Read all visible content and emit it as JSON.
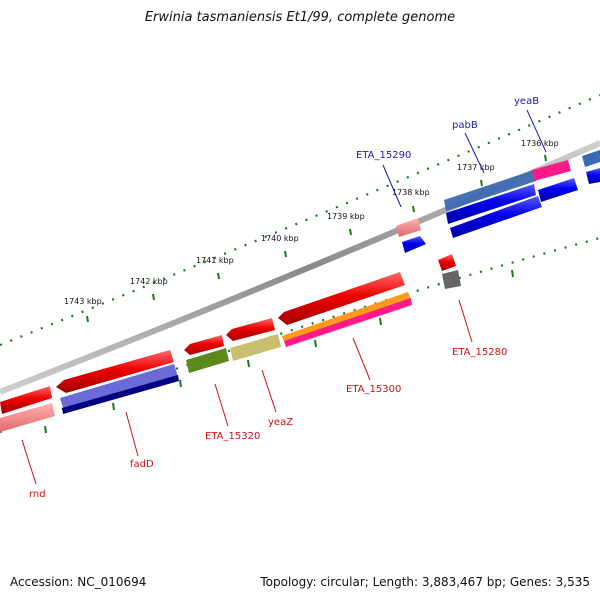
{
  "title": "Erwinia tasmaniensis Et1/99, complete genome",
  "footer": {
    "accession": "Accession: NC_010694",
    "summary": "Topology: circular; Length: 3,883,467 bp; Genes: 3,535"
  },
  "scale_labels": [
    "1743 kbp",
    "1742 kbp",
    "1741 kbp",
    "1740 kbp",
    "1739 kbp",
    "1738 kbp",
    "1737 kbp",
    "1736 kbp"
  ],
  "gene_labels": {
    "rnd": "rnd",
    "fadD": "fadD",
    "eta15320": "ETA_15320",
    "yeaZ": "yeaZ",
    "eta15300": "ETA_15300",
    "eta15280": "ETA_15280",
    "eta15290": "ETA_15290",
    "pabB": "pabB",
    "yeaB": "yeaB"
  },
  "colors": {
    "backbone": "#808080",
    "gene_red": "#ee0000",
    "gene_blue": "#0000ee",
    "label_red": "#d01010",
    "label_blue": "#1a1ab0",
    "tick_green": "#1a7a1a"
  }
}
